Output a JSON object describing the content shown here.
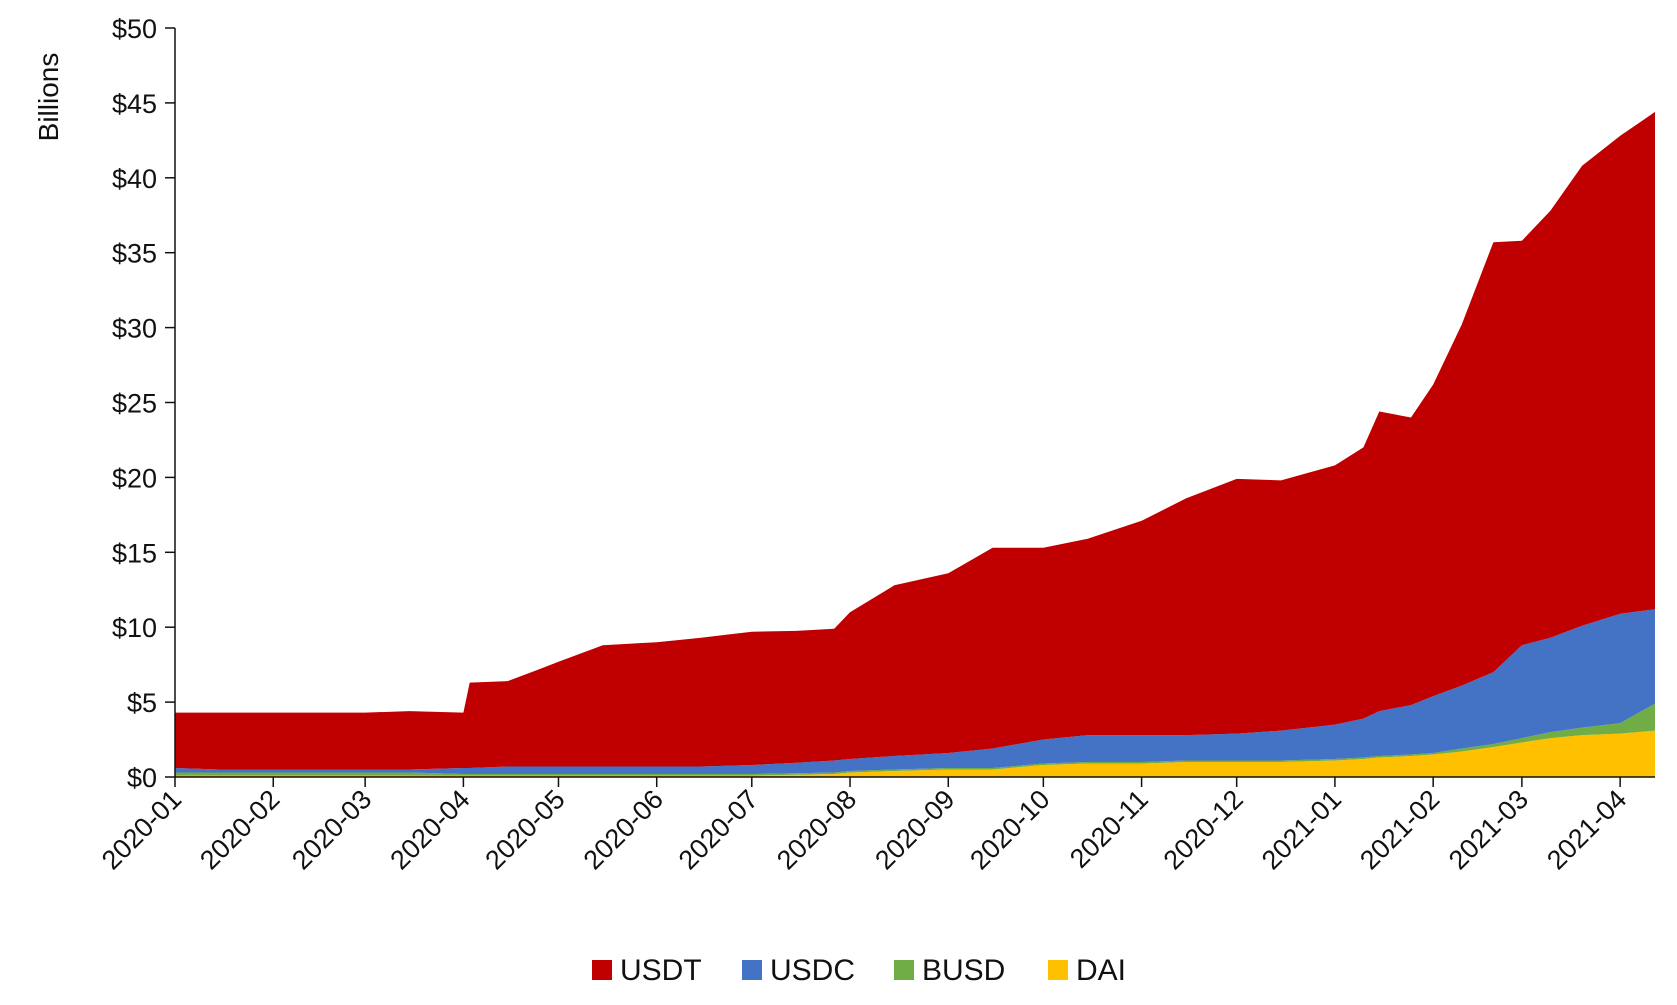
{
  "chart_data": {
    "type": "area",
    "stacked": true,
    "title": "",
    "xlabel": "",
    "ylabel": "Billions",
    "ylim": [
      0,
      50
    ],
    "y_ticks": [
      0,
      5,
      10,
      15,
      20,
      25,
      30,
      35,
      40,
      45,
      50
    ],
    "y_tick_labels": [
      "$0",
      "$5",
      "$10",
      "$15",
      "$20",
      "$25",
      "$30",
      "$35",
      "$40",
      "$45",
      "$50"
    ],
    "x_tick_labels": [
      "2020-01",
      "2020-02",
      "2020-03",
      "2020-04",
      "2020-05",
      "2020-06",
      "2020-07",
      "2020-08",
      "2020-09",
      "2020-10",
      "2020-11",
      "2020-12",
      "2021-01",
      "2021-02",
      "2021-03",
      "2021-04"
    ],
    "x_range": [
      "2020-01-01",
      "2021-04-12"
    ],
    "grid": false,
    "legend_position": "bottom-center",
    "x": [
      "2020-01-01",
      "2020-01-15",
      "2020-02-01",
      "2020-02-15",
      "2020-03-01",
      "2020-03-15",
      "2020-04-01",
      "2020-04-03",
      "2020-04-15",
      "2020-04-25",
      "2020-05-01",
      "2020-05-15",
      "2020-06-01",
      "2020-06-15",
      "2020-07-01",
      "2020-07-15",
      "2020-07-27",
      "2020-08-01",
      "2020-08-15",
      "2020-09-01",
      "2020-09-15",
      "2020-10-01",
      "2020-10-15",
      "2020-11-01",
      "2020-11-15",
      "2020-12-01",
      "2020-12-15",
      "2021-01-01",
      "2021-01-10",
      "2021-01-15",
      "2021-01-25",
      "2021-02-01",
      "2021-02-10",
      "2021-02-20",
      "2021-03-01",
      "2021-03-10",
      "2021-03-20",
      "2021-04-01",
      "2021-04-12"
    ],
    "series": [
      {
        "name": "DAI",
        "color": "#FFC000",
        "values": [
          0.1,
          0.1,
          0.1,
          0.1,
          0.1,
          0.1,
          0.1,
          0.1,
          0.1,
          0.1,
          0.1,
          0.1,
          0.1,
          0.1,
          0.1,
          0.15,
          0.2,
          0.3,
          0.4,
          0.5,
          0.5,
          0.8,
          0.9,
          0.9,
          1.0,
          1.0,
          1.0,
          1.1,
          1.2,
          1.3,
          1.4,
          1.5,
          1.7,
          2.0,
          2.3,
          2.6,
          2.8,
          2.9,
          3.1
        ]
      },
      {
        "name": "BUSD",
        "color": "#70AD47",
        "values": [
          0.2,
          0.2,
          0.2,
          0.2,
          0.2,
          0.2,
          0.1,
          0.1,
          0.1,
          0.1,
          0.1,
          0.1,
          0.1,
          0.1,
          0.1,
          0.1,
          0.1,
          0.1,
          0.1,
          0.1,
          0.1,
          0.1,
          0.1,
          0.1,
          0.1,
          0.1,
          0.1,
          0.1,
          0.1,
          0.1,
          0.1,
          0.1,
          0.2,
          0.2,
          0.3,
          0.4,
          0.5,
          0.7,
          1.8
        ]
      },
      {
        "name": "USDC",
        "color": "#4472C4",
        "values": [
          0.3,
          0.2,
          0.2,
          0.2,
          0.2,
          0.2,
          0.4,
          0.4,
          0.5,
          0.5,
          0.5,
          0.5,
          0.5,
          0.5,
          0.6,
          0.7,
          0.8,
          0.8,
          0.9,
          1.0,
          1.3,
          1.6,
          1.8,
          1.8,
          1.7,
          1.8,
          2.0,
          2.3,
          2.6,
          3.0,
          3.3,
          3.8,
          4.2,
          4.8,
          6.2,
          6.3,
          6.8,
          7.3,
          6.3
        ]
      },
      {
        "name": "USDT",
        "color": "#C00000",
        "values": [
          3.7,
          3.8,
          3.8,
          3.8,
          3.8,
          3.9,
          3.7,
          5.7,
          5.7,
          6.5,
          7.0,
          8.1,
          8.3,
          8.6,
          8.9,
          8.8,
          8.8,
          9.8,
          11.4,
          12.0,
          13.4,
          12.8,
          13.1,
          14.3,
          15.8,
          17.0,
          16.7,
          17.3,
          18.1,
          20.0,
          19.2,
          20.8,
          24.1,
          28.7,
          27.0,
          28.5,
          30.7,
          31.9,
          33.2
        ]
      }
    ]
  }
}
